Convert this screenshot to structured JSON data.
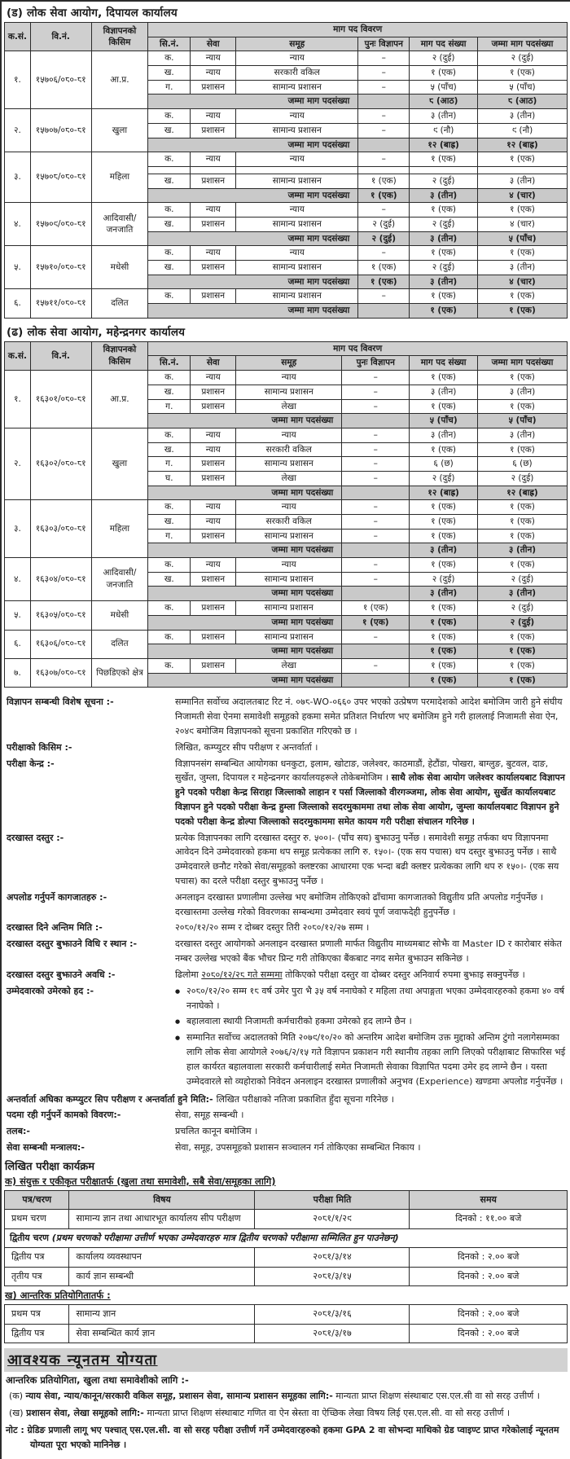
{
  "vacancy_sections": [
    {
      "title": "(ड) लोक सेवा आयोग, दिपायल कार्यालय",
      "headers": {
        "sn": "क.सं.",
        "adv_no": "वि.नं.",
        "adv_type": "विज्ञापनको किसिम",
        "demand_group": "माग पद विवरण",
        "sub": [
          "सि.नं.",
          "सेवा",
          "समूह",
          "पुनः विज्ञापन",
          "माग पद संख्या",
          "जम्मा माग पदसंख्या"
        ]
      },
      "total_label": "जम्मा माग पदसंख्या",
      "rows": [
        {
          "sn": "१.",
          "adv": "१५७०६/०८०-८१",
          "type": "आ.प्र.",
          "lines": [
            [
              "क.",
              "न्याय",
              "न्याय",
              "–",
              "२ (दुई)",
              "२ (दुई)"
            ],
            [
              "ख.",
              "न्याय",
              "सरकारी वकिल",
              "–",
              "१ (एक)",
              "१ (एक)"
            ],
            [
              "ग.",
              "प्रशासन",
              "सामान्य प्रशासन",
              "–",
              "५ (पाँच)",
              "५ (पाँच)"
            ]
          ],
          "total": [
            "",
            "८ (आठ)",
            "८ (आठ)"
          ]
        },
        {
          "sn": "२.",
          "adv": "१५७०७/०८०-८१",
          "type": "खुला",
          "lines": [
            [
              "क.",
              "न्याय",
              "न्याय",
              "–",
              "३ (तीन)",
              "३ (तीन)"
            ],
            [
              "ख.",
              "प्रशासन",
              "सामान्य प्रशासन",
              "–",
              "९ (नौ)",
              "९ (नौ)"
            ]
          ],
          "total": [
            "",
            "१२ (बाह्र)",
            "१२ (बाह्र)"
          ]
        },
        {
          "sn": "३.",
          "adv": "१५७०८/०८०-८१",
          "type": "महिला",
          "lines": [
            [
              "क.",
              "न्याय",
              "न्याय",
              "–",
              "१ (एक)",
              "१ (एक)"
            ],
            [
              "",
              "",
              "",
              "",
              "",
              ""
            ],
            [
              "ख.",
              "प्रशासन",
              "सामान्य प्रशासन",
              "१ (एक)",
              "२ (दुई)",
              "३ (तीन)"
            ]
          ],
          "total": [
            "१ (एक)",
            "३ (तीन)",
            "४ (चार)"
          ]
        },
        {
          "sn": "४.",
          "adv": "१५७०९/०८०-८१",
          "type": "आदिवासी/जनजाति",
          "lines": [
            [
              "क.",
              "न्याय",
              "न्याय",
              "–",
              "१ (एक)",
              "१ (एक)"
            ],
            [
              "ख.",
              "प्रशासन",
              "सामान्य प्रशासन",
              "२ (दुई)",
              "२ (दुई)",
              "४ (चार)"
            ]
          ],
          "total": [
            "२ (दुई)",
            "३ (तीन)",
            "५ (पाँच)"
          ]
        },
        {
          "sn": "५.",
          "adv": "१५७१०/०८०-८१",
          "type": "मधेसी",
          "lines": [
            [
              "क.",
              "न्याय",
              "न्याय",
              "–",
              "१ (एक)",
              "१ (एक)"
            ],
            [
              "ख.",
              "प्रशासन",
              "सामान्य प्रशासन",
              "१ (एक)",
              "२ (दुई)",
              "३ (तीन)"
            ]
          ],
          "total": [
            "१ (एक)",
            "३ (तीन)",
            "४ (चार)"
          ]
        },
        {
          "sn": "६.",
          "adv": "१५७११/०८०-८१",
          "type": "दलित",
          "lines": [
            [
              "क.",
              "प्रशासन",
              "सामान्य प्रशासन",
              "–",
              "१ (एक)",
              "१ (एक)"
            ]
          ],
          "total": [
            "",
            "१ (एक)",
            "१ (एक)"
          ]
        }
      ]
    },
    {
      "title": "(ढ) लोक सेवा आयोग, महेन्द्रनगर कार्यालय",
      "headers": {
        "sn": "क.सं.",
        "adv_no": "वि.नं.",
        "adv_type": "विज्ञापनको किसिम",
        "demand_group": "माग पद विवरण",
        "sub": [
          "सि.नं.",
          "सेवा",
          "समूह",
          "पुनः विज्ञापन",
          "माग पद संख्या",
          "जम्मा माग पदसंख्या"
        ]
      },
      "total_label": "जम्मा माग पदसंख्या",
      "rows": [
        {
          "sn": "१.",
          "adv": "१६३०१/०८०-८१",
          "type": "आ.प्र.",
          "lines": [
            [
              "क.",
              "न्याय",
              "न्याय",
              "–",
              "१ (एक)",
              "१ (एक)"
            ],
            [
              "ख.",
              "प्रशासन",
              "सामान्य प्रशासन",
              "–",
              "३ (तीन)",
              "३ (तीन)"
            ],
            [
              "ग.",
              "प्रशासन",
              "लेखा",
              "–",
              "१ (एक)",
              "१ (एक)"
            ]
          ],
          "total": [
            "",
            "५ (पाँच)",
            "५ (पाँच)"
          ]
        },
        {
          "sn": "२.",
          "adv": "१६३०२/०८०-८१",
          "type": "खुला",
          "lines": [
            [
              "क.",
              "न्याय",
              "न्याय",
              "–",
              "३ (तीन)",
              "३ (तीन)"
            ],
            [
              "ख.",
              "न्याय",
              "सरकारी वकिल",
              "–",
              "१ (एक)",
              "१ (एक)"
            ],
            [
              "ग.",
              "प्रशासन",
              "सामान्य प्रशासन",
              "–",
              "६ (छ)",
              "६ (छ)"
            ],
            [
              "घ.",
              "प्रशासन",
              "लेखा",
              "–",
              "२ (दुई)",
              "२ (दुई)"
            ]
          ],
          "total": [
            "",
            "१२ (बाह्र)",
            "१२ (बाह्र)"
          ]
        },
        {
          "sn": "३.",
          "adv": "१६३०३/०८०-८१",
          "type": "महिला",
          "lines": [
            [
              "क.",
              "न्याय",
              "न्याय",
              "–",
              "१ (एक)",
              "१ (एक)"
            ],
            [
              "ख.",
              "न्याय",
              "सरकारी वकिल",
              "–",
              "१ (एक)",
              "१ (एक)"
            ],
            [
              "ग.",
              "प्रशासन",
              "सामान्य प्रशासन",
              "–",
              "१ (एक)",
              "१ (एक)"
            ]
          ],
          "total": [
            "",
            "३ (तीन)",
            "३ (तीन)"
          ]
        },
        {
          "sn": "४.",
          "adv": "१६३०४/०८०-८१",
          "type": "आदिवासी/जनजाति",
          "lines": [
            [
              "क.",
              "न्याय",
              "न्याय",
              "–",
              "१ (एक)",
              "१ (एक)"
            ],
            [
              "ख.",
              "प्रशासन",
              "सामान्य प्रशासन",
              "–",
              "२ (दुई)",
              "२ (दुई)"
            ]
          ],
          "total": [
            "",
            "३ (तीन)",
            "३ (तीन)"
          ]
        },
        {
          "sn": "५.",
          "adv": "१६३०५/०८०-८१",
          "type": "मधेसी",
          "lines": [
            [
              "क.",
              "प्रशासन",
              "सामान्य प्रशासन",
              "१ (एक)",
              "१ (एक)",
              "२ (दुई)"
            ]
          ],
          "total": [
            "१ (एक)",
            "१ (एक)",
            "२ (दुई)"
          ]
        },
        {
          "sn": "६.",
          "adv": "१६३०६/०८०-८१",
          "type": "दलित",
          "lines": [
            [
              "क.",
              "प्रशासन",
              "सामान्य प्रशासन",
              "–",
              "१ (एक)",
              "१ (एक)"
            ]
          ],
          "total": [
            "",
            "१ (एक)",
            "१ (एक)"
          ]
        },
        {
          "sn": "७.",
          "adv": "१६३०७/०८०-८१",
          "type": "पिछडिएको क्षेत्र",
          "lines": [
            [
              "क.",
              "प्रशासन",
              "लेखा",
              "–",
              "१ (एक)",
              "१ (एक)"
            ]
          ],
          "total": [
            "",
            "१ (एक)",
            "१ (एक)"
          ]
        }
      ]
    }
  ],
  "info_rows": [
    {
      "label": "विज्ञापन सम्बन्धी विशेष सूचना :-",
      "segs": [
        {
          "t": "सम्मानित सर्वोच्च अदालतबाट रिट नं. ०७८-WO-०६६० उपर भएको उत्प्रेषण परमादेशको आदेश बमोजिम जारी हुने संघीय निजामती सेवा ऐनमा समावेशी समूहको हकमा समेत प्रतिशत निर्धारण भए बमोजिम हुने गरी हाललाई निजामती सेवा ऐन, २०४९ बमोजिम विज्ञापनको सूचना प्रकाशित गरिएको छ ।"
        }
      ]
    },
    {
      "label": "परीक्षाको किसिम :-",
      "segs": [
        {
          "t": "लिखित, कम्प्युटर सीप परीक्षण र अन्तर्वार्ता ।"
        }
      ]
    },
    {
      "label": "परीक्षा केन्द्र :-",
      "segs": [
        {
          "t": "विज्ञापनसंग सम्बन्धित आयोगका धनकुटा, इलाम, खोटाङ, जलेश्वर, काठमाडौं, हेटौंडा, पोखरा, बाग्लुङ, बुटवल, दाङ, सुर्खेत, जुम्ला, दिपायल र महेन्द्रनगर कार्यालयहरूले तोकेबमोजिम । "
        },
        {
          "t": "साथै लोक सेवा आयोग जलेश्वर कार्यालयबाट विज्ञापन हुने पदको परीक्षा केन्द्र सिराहा जिल्लाको लाहान र पर्सा जिल्लाको वीरगञ्जमा, लोक सेवा आयोग, सुर्खेत कार्यालयबाट विज्ञापन हुने पदको परीक्षा केन्द्र हुम्ला जिल्लाको सदरमुकाममा तथा लोक सेवा आयोग, जुम्ला कार्यालयबाट विज्ञापन हुने पदको परीक्षा केन्द्र डोल्पा जिल्लाको सदरमुकाममा समेत कायम गरी परीक्षा संचालन गरिनेछ ।",
          "b": 1
        }
      ]
    },
    {
      "label": "दरखास्त दस्तुर :-",
      "segs": [
        {
          "t": "प्रत्येक विज्ञापनका लागि दरखास्त दस्तुर रु. ५००।- (पाँच सय) बुझाउनु पर्नेछ । समावेशी समूह तर्फका थप विज्ञापनमा आवेदन दिने उम्मेदवारको हकमा थप समूह प्रत्येकका लागि रु. १५०।- (एक सय पचास) थप दस्तुर बुझाउनु पर्नेछ । साथै उम्मेदवारले छनौट गरेको सेवा/समूहको क्लष्टरका आधारमा एक भन्दा बढी क्लष्टर प्रत्येकका लागि थप रु १५०।- (एक सय पचास) का दरले परीक्षा दस्तुर बुझाउनु पर्नेछ ।"
        }
      ]
    },
    {
      "label": "अपलोड गर्नुपर्ने कागजातहरु :-",
      "segs": [
        {
          "t": "अनलाइन दरखास्त प्रणालीमा उल्लेख भए बमोजिम तोकिएको ढाँचामा कागजातको विद्युतीय प्रति अपलोड गर्नुपर्नेछ । दरखास्तमा उल्लेख गरेको विवरणका सम्बन्धमा उम्मेदवार स्वयं पूर्ण जवाफदेही हुनुपर्नेछ ।"
        }
      ]
    },
    {
      "label": "दरखास्त दिने अन्तिम मिति :-",
      "segs": [
        {
          "t": "२०८०/१२/२० सम्म र दोब्बर दस्तुर तिरी २०८०/१२/२७ सम्म ।"
        }
      ]
    },
    {
      "label": "दरखास्त दस्तुर बुझाउने विधि र स्थान :-",
      "segs": [
        {
          "t": "दरखास्त दस्तुर आयोगको अनलाइन दरखास्त प्रणाली मार्फत विद्युतीय माध्यमबाट सोझै वा Master ID र कारोबार संकेत नम्बर उल्लेख भएको बैंक भौचर प्रिन्ट गरी तोकिएका बैंकबाट नगद समेत बुझाउन सकिनेछ ।"
        }
      ]
    },
    {
      "label": "दरखास्त दस्तुर बुझाउने अवधि :-",
      "segs": [
        {
          "t": "ढिलोमा "
        },
        {
          "t": "२०८०/१२/२८ गते सम्ममा",
          "u": 1
        },
        {
          "t": " तोकिएको परीक्षा दस्तुर वा दोब्बर दस्तुर अनिवार्य रुपमा बुझाइ सक्नुपर्नेछ ।"
        }
      ]
    },
    {
      "label": "उम्मेदवारको उमेरको हद :-",
      "bullets": [
        [
          {
            "t": "२०८०/१२/२० सम्म १८ वर्ष उमेर पुरा भै ३५ वर्ष ननाघेको र महिला तथा अपाङ्गता भएका उम्मेदवारहरुको हकमा ४० वर्ष ननाघेको ।"
          }
        ],
        [
          {
            "t": "बहालवाला स्थायी निजामती कर्मचारीको हकमा उमेरको हद लाग्ने छैन ।"
          }
        ],
        [
          {
            "t": "सम्मानित सर्वोच्च अदालतको मिति २०७९/१०/२० को अन्तरिम आदेश बमोजिम उक्त मुद्दाको अन्तिम टुंगो नलागेसम्मका लागि लोक सेवा आयोगले २०७६/२/१५ गते विज्ञापन प्रकाशन गरी स्थानीय तहका लागि लिएको परीक्षाबाट सिफारिस भई हाल कार्यरत बहालवाला सरकारी कर्मचारीलाई समेत निजामती सेवाका विज्ञापित पदमा उमेर हद लाग्ने छैन । यस्ता उम्मेदवारले सो व्यहोराको निवेदन अनलाइन दरखास्त प्रणालीको अनुभव (Experience) खण्डमा अपलोड गर्नुपर्नेछ ।"
          }
        ]
      ]
    },
    {
      "label": "अन्तर्वार्ता अघिका कम्प्युटर सिप परीक्षण र अन्तर्वार्ता हुने मिति:-",
      "wide": 1,
      "segs": [
        {
          "t": "लिखित परीक्षाको नतिजा प्रकाशित हुँदा सूचना गरिनेछ ।"
        }
      ]
    },
    {
      "label": "पदमा रही गर्नुपर्ने कामको विवरण:-",
      "segs": [
        {
          "t": "सेवा, समूह सम्बन्धी ।"
        }
      ]
    },
    {
      "label": "तलब:-",
      "segs": [
        {
          "t": "प्रचलित कानून बमोजिम ।"
        }
      ]
    },
    {
      "label": "सेवा सम्बन्धी मन्त्रालय:-",
      "segs": [
        {
          "t": "सेवा, समूह, उपसमूहको प्रशासन सञ्चालन गर्न तोकिएका सम्बन्धित निकाय ।"
        }
      ]
    }
  ],
  "exam_program": {
    "heading": "लिखित परीक्षा कार्यक्रम",
    "part_a": {
      "heading": "क) संयुक्त र एकीकृत परीक्षातर्फ (खुला तथा समावेशी, सबै सेवा/समूहका लागि)",
      "headers": [
        "पत्र/चरण",
        "विषय",
        "परीक्षा मिति",
        "समय"
      ],
      "rows": [
        {
          "cells": [
            "प्रथम चरण",
            "सामान्य ज्ञान तथा आधारभूत कार्यालय सीप परीक्षण",
            "२०८१/१/२९",
            "दिनको : ११.०० बजे"
          ]
        },
        {
          "span": {
            "bold": "द्वितीय चरण ",
            "italic": "(प्रथम चरणको परीक्षामा उत्तीर्ण भएका उम्मेदवारहरु मात्र द्वितीय चरणको परीक्षामा सम्मिलित हुन पाउनेछन्)"
          }
        },
        {
          "cells": [
            "द्वितीय पत्र",
            "कार्यालय व्यवस्थापन",
            "२०८१/३/१४",
            "दिनको : २.०० बजे"
          ]
        },
        {
          "cells": [
            "तृतीय पत्र",
            "कार्य ज्ञान सम्बन्धी",
            "२०८१/३/१५",
            "दिनको : २.०० बजे"
          ]
        }
      ]
    },
    "part_b": {
      "heading": "ख) आन्तरिक प्रतियोगितातर्फ :",
      "rows": [
        {
          "cells": [
            "प्रथम पत्र",
            "सामान्य ज्ञान",
            "२०८१/३/१६",
            "दिनको : २.०० बजे"
          ]
        },
        {
          "cells": [
            "द्वितीय पत्र",
            "सेवा सम्बन्धित कार्य ज्ञान",
            "२०८१/३/१७",
            "दिनको : २.०० बजे"
          ]
        }
      ]
    }
  },
  "qualification": {
    "heading": "आवश्यक न्यूनतम योग्यता",
    "subheading": "आन्तरिक प्रतियोगिता, खुला तथा समावेशीको लागि :-",
    "items": [
      {
        "marker": "(क)",
        "bold": "न्याय सेवा, न्याय/कानून/सरकारी वकिल समूह, प्रशासन सेवा, सामान्य प्रशासन समूहका लागि:-",
        "text": " मान्यता प्राप्त शिक्षण संस्थाबाट एस.एल.सी वा सो सरह उत्तीर्ण ।"
      },
      {
        "marker": "(ख)",
        "bold": "प्रशासन सेवा, लेखा समूहको लागि:-",
        "text": " मान्यता प्राप्त शिक्षण संस्थाबाट गणित वा ऐन स्रेस्ता वा ऐच्छिक लेखा विषय लिई एस.एल.सी. वा सो सरह उत्तीर्ण ।"
      }
    ],
    "note": "नोट : ग्रेडिङ प्रणाली लागू भए पश्चात् एस.एल.सी. वा सो सरह परीक्षा उत्तीर्ण गर्ने उम्मेदवारहरुको हकमा GPA 2 वा सोभन्दा माथिको ग्रेड प्वाइण्ट प्राप्त गरेकोलाई न्यूनतम योग्यता पूरा भएको मानिनेछ ।"
  }
}
